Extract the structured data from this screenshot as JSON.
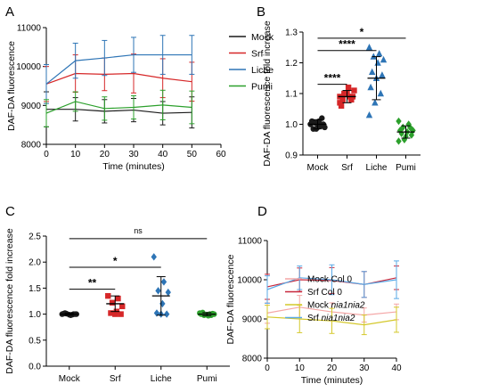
{
  "chart_data": [
    {
      "panel": "A",
      "type": "line",
      "x": [
        0,
        10,
        20,
        30,
        40,
        50
      ],
      "xlabel": "Time (minutes)",
      "ylabel": "DAF-DA fluorescence",
      "xlim": [
        0,
        60
      ],
      "ylim": [
        8000,
        11000
      ],
      "xticks": [
        "0",
        "10",
        "20",
        "30",
        "40",
        "50",
        "60"
      ],
      "yticks": [
        "8000",
        "9000",
        "10000",
        "11000"
      ],
      "legend_position": "top-right",
      "series": [
        {
          "name": "Mock",
          "color": "#1a1a1a",
          "values": [
            8900,
            8900,
            8850,
            8880,
            8800,
            8820
          ],
          "errors": [
            450,
            300,
            300,
            300,
            300,
            400
          ]
        },
        {
          "name": "Srf",
          "color": "#d62728",
          "values": [
            9550,
            9820,
            9800,
            9820,
            9700,
            9610
          ],
          "errors": [
            450,
            480,
            420,
            500,
            500,
            500
          ]
        },
        {
          "name": "Liche",
          "color": "#2e75b6",
          "values": [
            9550,
            10150,
            10220,
            10300,
            10300,
            10300
          ],
          "errors": [
            500,
            450,
            450,
            450,
            500,
            500
          ]
        },
        {
          "name": "Pumi",
          "color": "#2ca02c",
          "values": [
            8800,
            9100,
            8920,
            8950,
            9010,
            8950
          ],
          "errors": [
            350,
            250,
            300,
            300,
            380,
            420
          ]
        }
      ]
    },
    {
      "panel": "B",
      "type": "scatter",
      "categories": [
        "Mock",
        "Srf",
        "Liche",
        "Pumi"
      ],
      "ylabel": "DAF-DA fluorescence fold increase",
      "ylim": [
        0.9,
        1.3
      ],
      "yticks": [
        "0.9",
        "1.0",
        "1.1",
        "1.2",
        "1.3"
      ],
      "series": [
        {
          "name": "Mock",
          "color": "#1a1a1a",
          "marker": "circle",
          "mean": 1.0,
          "sd": 0.015,
          "points": [
            1.0,
            0.995,
            1.005,
            0.99,
            1.01,
            0.985,
            1.0,
            0.99,
            1.01,
            1.02,
            0.985,
            1.0
          ]
        },
        {
          "name": "Srf",
          "color": "#d62728",
          "marker": "square",
          "mean": 1.09,
          "sd": 0.02,
          "points": [
            1.07,
            1.09,
            1.1,
            1.11,
            1.12,
            1.08,
            1.09,
            1.1,
            1.06,
            1.08,
            1.1,
            1.09
          ]
        },
        {
          "name": "Liche",
          "color": "#2e75b6",
          "marker": "triangle",
          "mean": 1.15,
          "sd": 0.07,
          "points": [
            1.25,
            1.23,
            1.22,
            1.21,
            1.2,
            1.17,
            1.16,
            1.15,
            1.12,
            1.1,
            1.07,
            1.03
          ]
        },
        {
          "name": "Pumi",
          "color": "#2ca02c",
          "marker": "diamond",
          "mean": 0.975,
          "sd": 0.02,
          "points": [
            1.01,
            1.0,
            0.99,
            0.98,
            0.975,
            0.97,
            0.965,
            0.96,
            0.98,
            0.99,
            0.95,
            0.945
          ]
        }
      ],
      "significance": [
        {
          "from": 0,
          "to": 1,
          "y": 1.13,
          "label": "****"
        },
        {
          "from": 0,
          "to": 2,
          "y": 1.24,
          "label": "****"
        },
        {
          "from": 0,
          "to": 3,
          "y": 1.28,
          "label": "*"
        }
      ]
    },
    {
      "panel": "C",
      "type": "scatter",
      "categories": [
        "Mock",
        "Srf",
        "Liche",
        "Pumi"
      ],
      "ylabel": "DAF-DA fluorescence fold increase",
      "ylim": [
        0.0,
        2.5
      ],
      "yticks": [
        "0.0",
        "0.5",
        "1.0",
        "1.5",
        "2.0",
        "2.5"
      ],
      "series": [
        {
          "name": "Mock",
          "color": "#1a1a1a",
          "marker": "circle",
          "mean": 1.0,
          "sd": 0.02,
          "points": [
            1.0,
            0.99,
            1.01,
            1.0,
            0.98,
            1.02,
            1.0,
            0.99,
            1.01,
            1.0
          ]
        },
        {
          "name": "Srf",
          "color": "#d62728",
          "marker": "square",
          "mean": 1.2,
          "sd": 0.15,
          "points": [
            1.35,
            1.3,
            1.22,
            1.15,
            1.05,
            1.02,
            1.0,
            1.0
          ]
        },
        {
          "name": "Liche",
          "color": "#2e75b6",
          "marker": "diamond",
          "mean": 1.35,
          "sd": 0.37,
          "points": [
            2.1,
            1.62,
            1.45,
            1.42,
            1.2,
            1.02,
            1.0,
            1.0
          ]
        },
        {
          "name": "Pumi",
          "color": "#2ca02c",
          "marker": "circle",
          "mean": 1.0,
          "sd": 0.03,
          "points": [
            1.02,
            1.0,
            0.98,
            1.0,
            0.97,
            1.03,
            1.01,
            0.99,
            1.0,
            0.98
          ]
        }
      ],
      "significance": [
        {
          "from": 0,
          "to": 1,
          "y": 1.48,
          "label": "**"
        },
        {
          "from": 0,
          "to": 2,
          "y": 1.9,
          "label": "*"
        },
        {
          "from": 0,
          "to": 3,
          "y": 2.45,
          "label": "ns"
        }
      ]
    },
    {
      "panel": "D",
      "type": "line",
      "x": [
        0,
        10,
        20,
        30,
        40
      ],
      "xlabel": "Time (minutes)",
      "ylabel": "DAF-DA fluorescence",
      "xlim": [
        0,
        40
      ],
      "ylim": [
        8000,
        11000
      ],
      "xticks": [
        "0",
        "10",
        "20",
        "30",
        "40"
      ],
      "yticks": [
        "8000",
        "9000",
        "10000",
        "11000"
      ],
      "legend_position": "bottom-right",
      "series": [
        {
          "name": "Mock Col 0",
          "name_main": "Mock Col 0",
          "name_italic": "",
          "color": "#f4a6a6",
          "values": [
            9150,
            9300,
            9180,
            9100,
            9180
          ],
          "errors": [
            260,
            300,
            230,
            180,
            200
          ]
        },
        {
          "name": "Srf Col 0",
          "name_main": "Srf Col 0",
          "name_italic": "",
          "color": "#c8283c",
          "values": [
            9820,
            10000,
            9980,
            9880,
            10050
          ],
          "errors": [
            320,
            300,
            330,
            330,
            300
          ]
        },
        {
          "name": "Mock nia1nia2",
          "name_main": "Mock ",
          "name_italic": "nia1nia2",
          "color": "#d4c82b",
          "values": [
            9050,
            9000,
            8950,
            8850,
            8980
          ],
          "errors": [
            300,
            350,
            320,
            250,
            320
          ]
        },
        {
          "name": "Srf nia1nia2",
          "name_main": "Srf ",
          "name_italic": "nia1nia2",
          "color": "#5aa9e6",
          "values": [
            9750,
            10050,
            10000,
            9880,
            10000
          ],
          "errors": [
            350,
            300,
            380,
            330,
            480
          ]
        }
      ]
    }
  ]
}
